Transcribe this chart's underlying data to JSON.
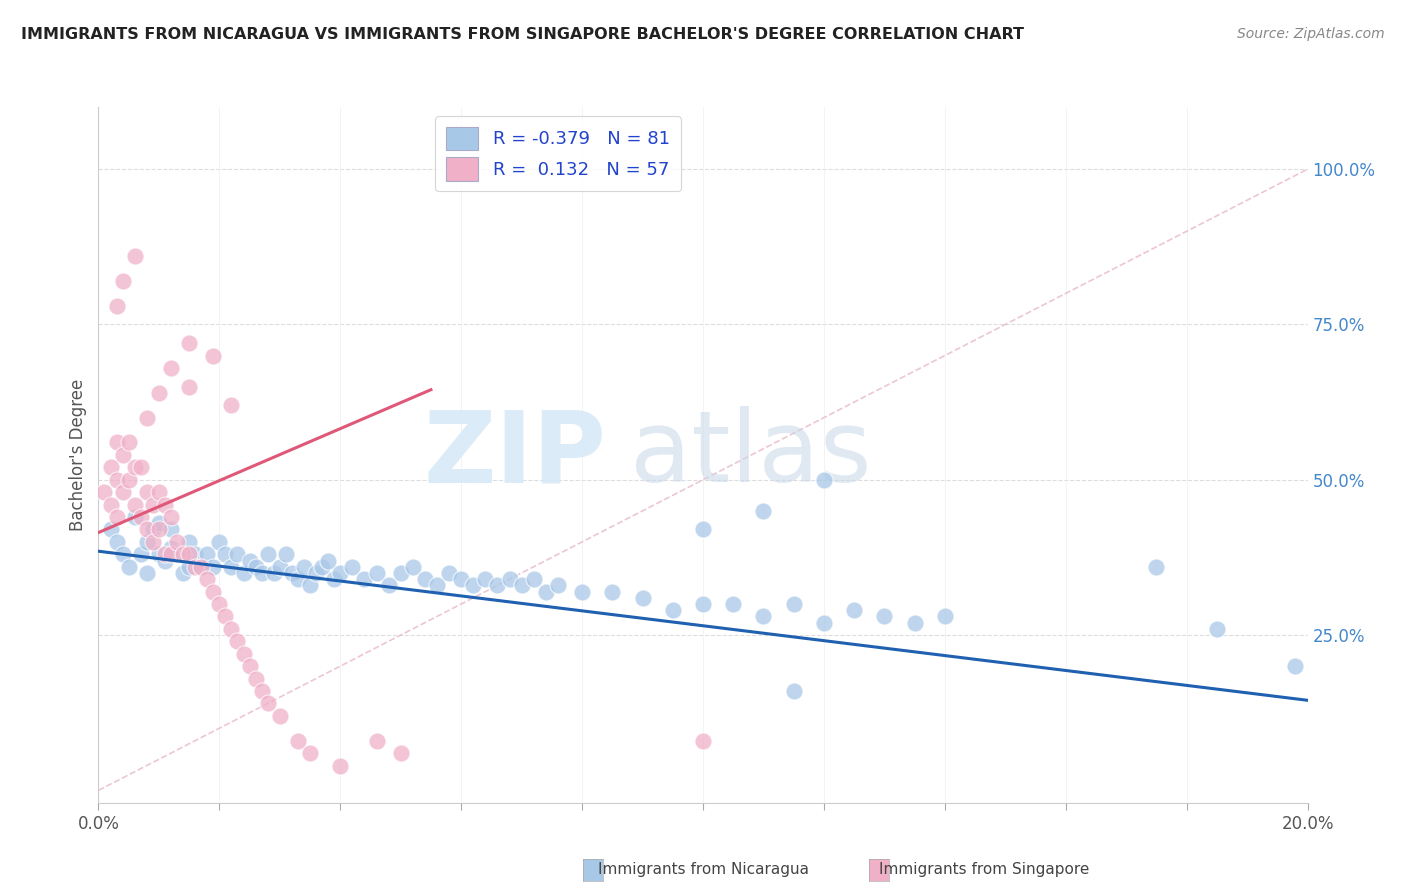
{
  "title": "IMMIGRANTS FROM NICARAGUA VS IMMIGRANTS FROM SINGAPORE BACHELOR'S DEGREE CORRELATION CHART",
  "source": "Source: ZipAtlas.com",
  "ylabel": "Bachelor's Degree",
  "ytick_vals": [
    0.25,
    0.5,
    0.75,
    1.0
  ],
  "ytick_labels": [
    "25.0%",
    "50.0%",
    "75.0%",
    "100.0%"
  ],
  "xlim": [
    0.0,
    0.2
  ],
  "ylim": [
    -0.02,
    1.1
  ],
  "blue_color": "#a8c8e8",
  "pink_color": "#f0b0c8",
  "blue_line_color": "#2060b0",
  "pink_line_color": "#e05878",
  "diag_color": "#e8b8c8",
  "legend_text_color": "#2244cc",
  "blue_line_x": [
    0.0,
    0.2
  ],
  "blue_line_y": [
    0.385,
    0.145
  ],
  "pink_line_x": [
    0.0,
    0.055
  ],
  "pink_line_y": [
    0.415,
    0.645
  ],
  "diag_line_x": [
    0.0,
    0.2
  ],
  "diag_line_y": [
    0.0,
    1.0
  ],
  "blue_x": [
    0.002,
    0.003,
    0.004,
    0.005,
    0.006,
    0.007,
    0.008,
    0.008,
    0.009,
    0.01,
    0.01,
    0.011,
    0.012,
    0.012,
    0.013,
    0.014,
    0.015,
    0.015,
    0.016,
    0.017,
    0.018,
    0.019,
    0.02,
    0.021,
    0.022,
    0.023,
    0.024,
    0.025,
    0.026,
    0.027,
    0.028,
    0.029,
    0.03,
    0.031,
    0.032,
    0.033,
    0.034,
    0.035,
    0.036,
    0.037,
    0.038,
    0.039,
    0.04,
    0.042,
    0.044,
    0.046,
    0.048,
    0.05,
    0.052,
    0.054,
    0.056,
    0.058,
    0.06,
    0.062,
    0.064,
    0.066,
    0.068,
    0.07,
    0.072,
    0.074,
    0.076,
    0.08,
    0.085,
    0.09,
    0.095,
    0.1,
    0.105,
    0.11,
    0.115,
    0.12,
    0.125,
    0.13,
    0.135,
    0.14,
    0.1,
    0.11,
    0.12,
    0.175,
    0.185,
    0.198,
    0.115
  ],
  "blue_y": [
    0.42,
    0.4,
    0.38,
    0.36,
    0.44,
    0.38,
    0.35,
    0.4,
    0.42,
    0.38,
    0.43,
    0.37,
    0.42,
    0.39,
    0.38,
    0.35,
    0.36,
    0.4,
    0.38,
    0.36,
    0.38,
    0.36,
    0.4,
    0.38,
    0.36,
    0.38,
    0.35,
    0.37,
    0.36,
    0.35,
    0.38,
    0.35,
    0.36,
    0.38,
    0.35,
    0.34,
    0.36,
    0.33,
    0.35,
    0.36,
    0.37,
    0.34,
    0.35,
    0.36,
    0.34,
    0.35,
    0.33,
    0.35,
    0.36,
    0.34,
    0.33,
    0.35,
    0.34,
    0.33,
    0.34,
    0.33,
    0.34,
    0.33,
    0.34,
    0.32,
    0.33,
    0.32,
    0.32,
    0.31,
    0.29,
    0.3,
    0.3,
    0.28,
    0.3,
    0.27,
    0.29,
    0.28,
    0.27,
    0.28,
    0.42,
    0.45,
    0.5,
    0.36,
    0.26,
    0.2,
    0.16
  ],
  "pink_x": [
    0.001,
    0.002,
    0.002,
    0.003,
    0.003,
    0.003,
    0.004,
    0.004,
    0.005,
    0.005,
    0.006,
    0.006,
    0.007,
    0.007,
    0.008,
    0.008,
    0.009,
    0.009,
    0.01,
    0.01,
    0.011,
    0.011,
    0.012,
    0.012,
    0.013,
    0.014,
    0.015,
    0.016,
    0.017,
    0.018,
    0.019,
    0.02,
    0.021,
    0.022,
    0.023,
    0.024,
    0.025,
    0.026,
    0.027,
    0.028,
    0.03,
    0.033,
    0.035,
    0.04,
    0.046,
    0.05,
    0.008,
    0.01,
    0.012,
    0.015,
    0.003,
    0.004,
    0.006,
    0.015,
    0.019,
    0.022,
    0.1
  ],
  "pink_y": [
    0.48,
    0.52,
    0.46,
    0.56,
    0.5,
    0.44,
    0.54,
    0.48,
    0.56,
    0.5,
    0.52,
    0.46,
    0.52,
    0.44,
    0.48,
    0.42,
    0.46,
    0.4,
    0.48,
    0.42,
    0.46,
    0.38,
    0.44,
    0.38,
    0.4,
    0.38,
    0.38,
    0.36,
    0.36,
    0.34,
    0.32,
    0.3,
    0.28,
    0.26,
    0.24,
    0.22,
    0.2,
    0.18,
    0.16,
    0.14,
    0.12,
    0.08,
    0.06,
    0.04,
    0.08,
    0.06,
    0.6,
    0.64,
    0.68,
    0.72,
    0.78,
    0.82,
    0.86,
    0.65,
    0.7,
    0.62,
    0.08
  ]
}
